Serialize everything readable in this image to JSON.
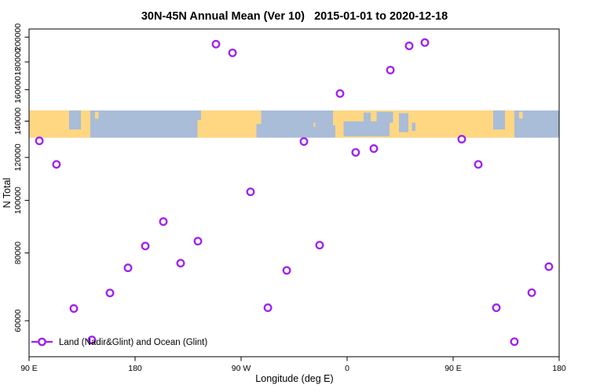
{
  "chart_data": {
    "type": "scatter",
    "title": "30N-45N Annual Mean (Ver 10)   2015-01-01 to 2020-12-18",
    "xlabel": "Longitude (deg E)",
    "ylabel": "N Total",
    "legend_label": "Land (Nadir&Glint) and Ocean (Glint)",
    "marker": "open-circle",
    "marker_color": "#A020F0",
    "x_axis": {
      "min": 90,
      "max": 540,
      "ticks": [
        90,
        180,
        270,
        360,
        450,
        540
      ],
      "tick_labels": [
        "90 E",
        "180",
        "90 W",
        "0",
        "90 E",
        "180"
      ]
    },
    "y_axis": {
      "scale": "log",
      "min": 51500,
      "max": 207000,
      "ticks": [
        200000,
        180000,
        160000,
        140000,
        120000,
        100000,
        80000,
        60000
      ],
      "tick_labels": [
        "200000",
        "180000",
        "160000",
        "140000",
        "120000",
        "100000",
        "80000",
        "60000"
      ]
    },
    "series": [
      {
        "name": "Land (Nadir&Glint) and Ocean (Glint)",
        "points": [
          [
            98.7,
            128800
          ],
          [
            113.3,
            116500
          ],
          [
            128.0,
            63200
          ],
          [
            143.3,
            55300
          ],
          [
            158.7,
            67500
          ],
          [
            174.0,
            75100
          ],
          [
            188.7,
            82400
          ],
          [
            204.0,
            91400
          ],
          [
            218.7,
            76600
          ],
          [
            233.3,
            84100
          ],
          [
            248.7,
            194100
          ],
          [
            262.7,
            187100
          ],
          [
            278.0,
            103700
          ],
          [
            292.7,
            63400
          ],
          [
            308.7,
            74300
          ],
          [
            323.3,
            128400
          ],
          [
            336.7,
            82700
          ],
          [
            354.0,
            157400
          ],
          [
            367.3,
            122600
          ],
          [
            382.7,
            124600
          ],
          [
            396.7,
            173900
          ],
          [
            412.7,
            192700
          ],
          [
            426.0,
            195400
          ],
          [
            457.3,
            129700
          ],
          [
            471.3,
            116500
          ],
          [
            486.7,
            63400
          ],
          [
            502.0,
            54900
          ],
          [
            516.7,
            67600
          ],
          [
            531.3,
            75500
          ]
        ]
      }
    ],
    "map_band": {
      "value_top": 146500,
      "value_bottom": 130500,
      "land_color": "#FFD782",
      "ocean_color": "#A9BCD8",
      "land_segments_lon": [
        [
          90,
          142
        ],
        [
          236,
          283
        ],
        [
          350,
          502
        ]
      ],
      "sea_patches": [
        {
          "lon": [
            124,
            134
          ],
          "frac": [
            0,
            0.7
          ]
        },
        {
          "lon": [
            357,
            396
          ],
          "frac": [
            0.4,
            0.95
          ]
        },
        {
          "lon": [
            374,
            380
          ],
          "frac": [
            0.08,
            0.5
          ]
        },
        {
          "lon": [
            385,
            399
          ],
          "frac": [
            0.05,
            0.45
          ]
        },
        {
          "lon": [
            404,
            412
          ],
          "frac": [
            0.1,
            0.8
          ]
        },
        {
          "lon": [
            415,
            418
          ],
          "frac": [
            0.45,
            0.75
          ]
        },
        {
          "lon": [
            484,
            494
          ],
          "frac": [
            0,
            0.7
          ]
        }
      ],
      "land_patches": [
        {
          "lon": [
            233,
            236
          ],
          "frac": [
            0.35,
            1
          ]
        },
        {
          "lon": [
            283,
            287
          ],
          "frac": [
            0,
            0.5
          ]
        },
        {
          "lon": [
            331.5,
            333
          ],
          "frac": [
            0.45,
            0.6
          ]
        },
        {
          "lon": [
            146,
            149
          ],
          "frac": [
            0.05,
            0.3
          ]
        },
        {
          "lon": [
            348,
            350
          ],
          "frac": [
            0,
            0.55
          ]
        },
        {
          "lon": [
            506,
            509
          ],
          "frac": [
            0.05,
            0.3
          ]
        }
      ]
    }
  }
}
